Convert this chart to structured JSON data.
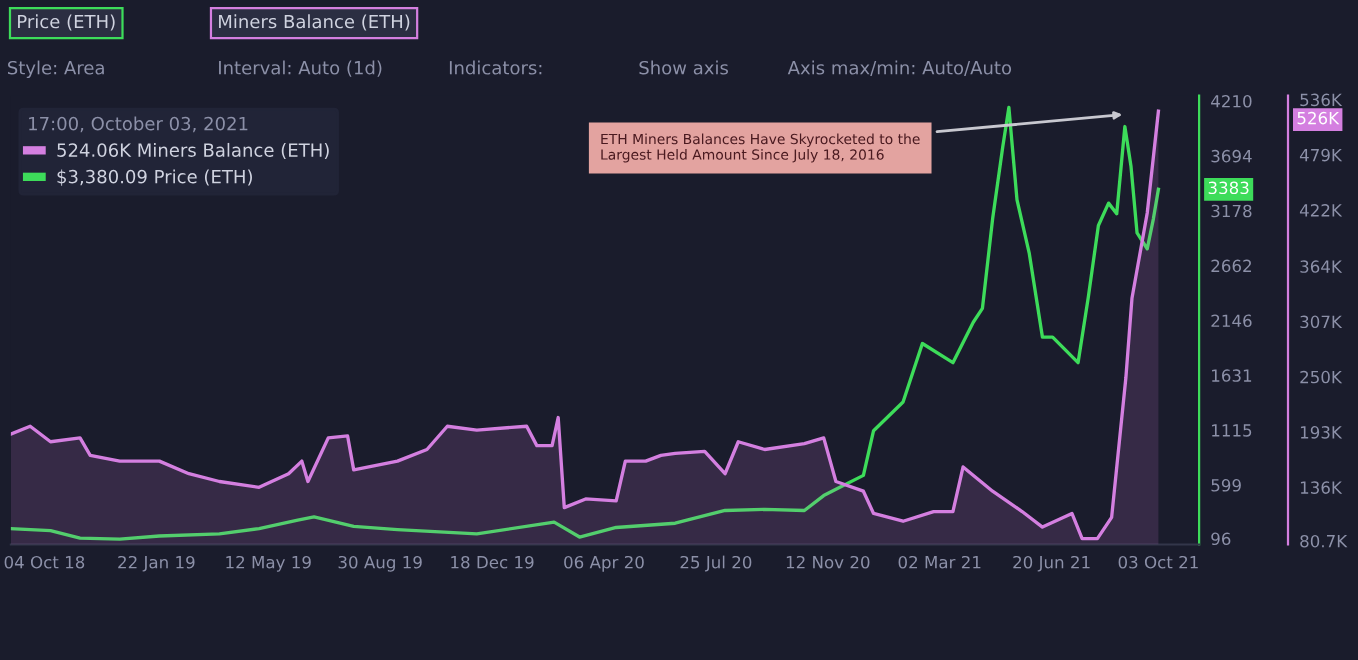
{
  "chart_data": {
    "type": "line",
    "legend_title": "17:00, October 03, 2021",
    "annotations": [
      "Price (ETH)",
      "Miners Balance (ETH)",
      "Style: Area",
      "Interval: Auto (1d)",
      "Indicators:",
      "Show axis",
      "Axis max/min: Auto/Auto",
      "ETH Miners Balances Have Skyrocketed to the Largest Held Amount Since July 18, 2016",
      "524.06K",
      "$3,380.09",
      "3383",
      "526K"
    ],
    "series": [
      {
        "name": "Miners Balance (ETH)",
        "type": "area",
        "axis": "y2",
        "color": "#d47fe0",
        "x": [
          "2018-09-01",
          "2018-09-20",
          "2018-10-10",
          "2018-11-08",
          "2018-11-18",
          "2018-12-17",
          "2019-01-25",
          "2019-02-23",
          "2019-03-25",
          "2019-05-03",
          "2019-06-01",
          "2019-06-14",
          "2019-06-20",
          "2019-07-10",
          "2019-07-29",
          "2019-08-04",
          "2019-09-16",
          "2019-10-15",
          "2019-11-04",
          "2019-12-03",
          "2020-01-21",
          "2020-01-31",
          "2020-02-15",
          "2020-02-21",
          "2020-02-27",
          "2020-03-19",
          "2020-04-18",
          "2020-04-27",
          "2020-05-17",
          "2020-06-01",
          "2020-06-15",
          "2020-07-14",
          "2020-08-03",
          "2020-08-16",
          "2020-09-11",
          "2020-10-20",
          "2020-11-08",
          "2020-11-20",
          "2020-12-17",
          "2020-12-27",
          "2021-01-25",
          "2021-02-24",
          "2021-03-15",
          "2021-03-25",
          "2021-04-23",
          "2021-05-22",
          "2021-06-11",
          "2021-07-10",
          "2021-07-20",
          "2021-08-04",
          "2021-08-18",
          "2021-09-01",
          "2021-09-07",
          "2021-09-22",
          "2021-10-03"
        ],
        "values": [
          191,
          199,
          183,
          187,
          169,
          163,
          163,
          150,
          142,
          136,
          150,
          163,
          142,
          187,
          189,
          154,
          163,
          175,
          199,
          195,
          199,
          179,
          179,
          208,
          115,
          124,
          122,
          163,
          163,
          169,
          171,
          173,
          150,
          183,
          175,
          181,
          187,
          142,
          132,
          109,
          101,
          111,
          111,
          157,
          132,
          111,
          95,
          109,
          83,
          83,
          105,
          249,
          331,
          419,
          524
        ]
      },
      {
        "name": "Price (ETH)",
        "color": "#3ddc5a",
        "x": [
          "2018-09-01",
          "2018-10-10",
          "2018-11-08",
          "2018-12-17",
          "2019-01-25",
          "2019-03-25",
          "2019-05-03",
          "2019-06-01",
          "2019-06-10",
          "2019-06-26",
          "2019-08-04",
          "2019-09-16",
          "2019-12-03",
          "2020-02-17",
          "2020-03-13",
          "2020-04-18",
          "2020-06-15",
          "2020-08-03",
          "2020-09-11",
          "2020-10-20",
          "2020-11-08",
          "2020-11-20",
          "2020-12-17",
          "2020-12-27",
          "2021-01-25",
          "2021-02-13",
          "2021-03-15",
          "2021-04-04",
          "2021-04-13",
          "2021-04-23",
          "2021-05-03",
          "2021-05-09",
          "2021-05-17",
          "2021-05-29",
          "2021-06-11",
          "2021-06-21",
          "2021-07-16",
          "2021-07-26",
          "2021-08-05",
          "2021-08-15",
          "2021-08-23",
          "2021-08-31",
          "2021-09-06",
          "2021-09-12",
          "2021-09-22",
          "2021-09-28",
          "2021-10-03"
        ],
        "values": [
          190,
          170,
          100,
          90,
          120,
          140,
          190,
          250,
          270,
          300,
          210,
          180,
          140,
          250,
          110,
          200,
          240,
          360,
          370,
          360,
          500,
          560,
          690,
          1110,
          1380,
          1930,
          1750,
          2130,
          2260,
          3100,
          3780,
          4150,
          3280,
          2780,
          1990,
          1990,
          1750,
          2360,
          3040,
          3250,
          3150,
          3970,
          3600,
          2970,
          2820,
          3100,
          3380
        ]
      }
    ],
    "xlim": [
      "2018-09-01",
      "2021-11-12"
    ],
    "xticks": [
      {
        "value": "2018-10-04",
        "label": "04 Oct 18"
      },
      {
        "value": "2019-01-22",
        "label": "22 Jan 19"
      },
      {
        "value": "2019-05-12",
        "label": "12 May 19"
      },
      {
        "value": "2019-08-30",
        "label": "30 Aug 19"
      },
      {
        "value": "2019-12-18",
        "label": "18 Dec 19"
      },
      {
        "value": "2020-04-06",
        "label": "06 Apr 20"
      },
      {
        "value": "2020-07-25",
        "label": "25 Jul 20"
      },
      {
        "value": "2020-11-12",
        "label": "12 Nov 20"
      },
      {
        "value": "2021-03-02",
        "label": "02 Mar 21"
      },
      {
        "value": "2021-06-20",
        "label": "20 Jun 21"
      },
      {
        "value": "2021-10-03",
        "label": "03 Oct 21"
      }
    ],
    "ylim": [
      40,
      4260
    ],
    "yticks": [
      96,
      599,
      1115,
      1631,
      2146,
      2662,
      3178,
      3694,
      4210
    ],
    "y2lim": [
      77,
      540
    ],
    "y2ticks": [
      {
        "value": 80.7,
        "label": "80.7K"
      },
      {
        "value": 136,
        "label": "136K"
      },
      {
        "value": 193,
        "label": "193K"
      },
      {
        "value": 250,
        "label": "250K"
      },
      {
        "value": 307,
        "label": "307K"
      },
      {
        "value": 364,
        "label": "364K"
      },
      {
        "value": 422,
        "label": "422K"
      },
      {
        "value": 479,
        "label": "479K"
      },
      {
        "value": 536,
        "label": "536K"
      }
    ],
    "legend": "top left",
    "grid": false
  }
}
